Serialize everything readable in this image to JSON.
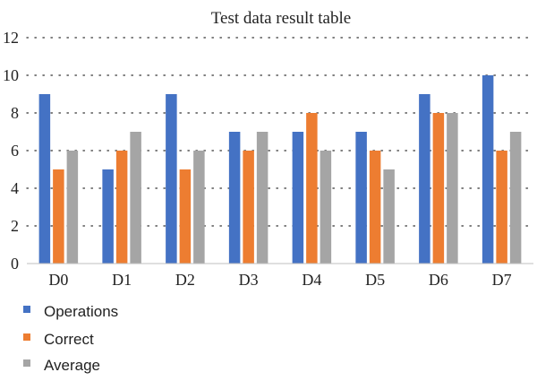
{
  "chart_data": {
    "type": "bar",
    "title": "Test data result table",
    "categories": [
      "D0",
      "D1",
      "D2",
      "D3",
      "D4",
      "D5",
      "D6",
      "D7"
    ],
    "ylim": [
      0,
      12
    ],
    "yticks": [
      0,
      2,
      4,
      6,
      8,
      10,
      12
    ],
    "grid": "dotted-horizontal",
    "legend_position": "bottom-left",
    "series": [
      {
        "name": "Operations",
        "color": "#4472c4",
        "values": [
          9,
          5,
          9,
          7,
          7,
          7,
          9,
          10
        ]
      },
      {
        "name": "Correct",
        "color": "#ed7d31",
        "values": [
          5,
          6,
          5,
          6,
          8,
          6,
          8,
          6
        ]
      },
      {
        "name": "Average",
        "color": "#a5a5a5",
        "values": [
          6,
          7,
          6,
          7,
          6,
          5,
          8,
          7
        ]
      }
    ]
  }
}
